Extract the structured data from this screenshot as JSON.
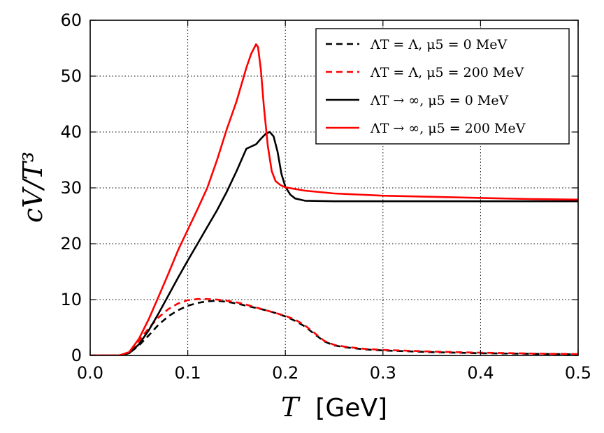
{
  "chart_data": {
    "type": "line",
    "title": "",
    "xlabel": {
      "symbol": "T",
      "unit": "[GeV]"
    },
    "ylabel": "c_V/T^3",
    "ylabel_display": "cV/T³",
    "xlim": [
      0.0,
      0.5
    ],
    "ylim": [
      0,
      60
    ],
    "xticks": [
      0.0,
      0.1,
      0.2,
      0.3,
      0.4,
      0.5
    ],
    "xtick_labels": [
      "0.0",
      "0.1",
      "0.2",
      "0.3",
      "0.4",
      "0.5"
    ],
    "yticks": [
      0,
      10,
      20,
      30,
      40,
      50,
      60
    ],
    "ytick_labels": [
      "0",
      "10",
      "20",
      "30",
      "40",
      "50",
      "60"
    ],
    "grid": true,
    "legend_position": "top-right",
    "series": [
      {
        "name": "ΛT = Λ, μ5 = 0 MeV",
        "legend_label": "ΛT = Λ, μ5 =  0 MeV",
        "color": "#000000",
        "style": "dashed",
        "x": [
          0.0,
          0.03,
          0.04,
          0.05,
          0.06,
          0.07,
          0.08,
          0.09,
          0.1,
          0.11,
          0.12,
          0.13,
          0.14,
          0.15,
          0.16,
          0.17,
          0.18,
          0.19,
          0.2,
          0.21,
          0.22,
          0.23,
          0.24,
          0.25,
          0.26,
          0.28,
          0.3,
          0.35,
          0.4,
          0.45,
          0.5
        ],
        "y": [
          0.0,
          0.02,
          0.4,
          1.8,
          3.6,
          5.5,
          7.0,
          8.1,
          8.9,
          9.4,
          9.7,
          9.8,
          9.6,
          9.3,
          8.9,
          8.5,
          8.1,
          7.6,
          7.0,
          6.2,
          5.2,
          3.8,
          2.5,
          1.8,
          1.5,
          1.1,
          0.9,
          0.6,
          0.4,
          0.3,
          0.2
        ]
      },
      {
        "name": "ΛT = Λ, μ5 = 200 MeV",
        "legend_label": "ΛT = Λ, μ5 =  200 MeV",
        "color": "#ff0000",
        "style": "dashed",
        "x": [
          0.0,
          0.03,
          0.04,
          0.05,
          0.06,
          0.07,
          0.08,
          0.09,
          0.1,
          0.11,
          0.12,
          0.13,
          0.14,
          0.15,
          0.16,
          0.17,
          0.18,
          0.19,
          0.2,
          0.21,
          0.22,
          0.23,
          0.24,
          0.25,
          0.26,
          0.28,
          0.3,
          0.35,
          0.4,
          0.45,
          0.5
        ],
        "y": [
          0.0,
          0.03,
          0.6,
          2.6,
          4.9,
          6.8,
          8.3,
          9.3,
          9.9,
          10.1,
          10.1,
          10.0,
          9.8,
          9.5,
          9.1,
          8.6,
          8.1,
          7.6,
          7.1,
          6.4,
          5.4,
          4.0,
          2.6,
          1.9,
          1.6,
          1.2,
          1.0,
          0.7,
          0.5,
          0.35,
          0.25
        ]
      },
      {
        "name": "ΛT → ∞, μ5 = 0 MeV",
        "legend_label": "ΛT → ∞, μ5 =  0 MeV",
        "color": "#000000",
        "style": "solid",
        "x": [
          0.0,
          0.03,
          0.04,
          0.05,
          0.06,
          0.07,
          0.08,
          0.09,
          0.1,
          0.11,
          0.12,
          0.13,
          0.14,
          0.15,
          0.16,
          0.17,
          0.175,
          0.18,
          0.184,
          0.188,
          0.192,
          0.196,
          0.2,
          0.205,
          0.21,
          0.22,
          0.25,
          0.3,
          0.4,
          0.5
        ],
        "y": [
          0.0,
          0.02,
          0.4,
          2.0,
          4.5,
          7.5,
          10.7,
          13.9,
          17.0,
          20.0,
          23.0,
          26.0,
          29.3,
          33.0,
          37.0,
          37.8,
          38.8,
          39.7,
          40.0,
          39.2,
          36.5,
          32.5,
          30.2,
          28.8,
          28.1,
          27.7,
          27.6,
          27.6,
          27.6,
          27.6
        ]
      },
      {
        "name": "ΛT → ∞, μ5 = 200 MeV",
        "legend_label": "ΛT → ∞, μ5 =  200 MeV",
        "color": "#ff0000",
        "style": "solid",
        "x": [
          0.0,
          0.03,
          0.04,
          0.05,
          0.06,
          0.07,
          0.08,
          0.09,
          0.1,
          0.11,
          0.12,
          0.13,
          0.14,
          0.15,
          0.16,
          0.165,
          0.17,
          0.172,
          0.175,
          0.178,
          0.182,
          0.186,
          0.19,
          0.195,
          0.2,
          0.21,
          0.22,
          0.25,
          0.3,
          0.35,
          0.4,
          0.45,
          0.5
        ],
        "y": [
          0.0,
          0.03,
          0.6,
          3.0,
          6.5,
          10.5,
          14.6,
          18.8,
          22.5,
          26.2,
          30.0,
          35.0,
          40.5,
          45.5,
          51.5,
          54.0,
          55.7,
          55.2,
          51.0,
          44.5,
          37.5,
          33.0,
          31.2,
          30.5,
          30.1,
          29.8,
          29.5,
          29.0,
          28.6,
          28.4,
          28.2,
          28.0,
          27.9
        ]
      }
    ]
  }
}
